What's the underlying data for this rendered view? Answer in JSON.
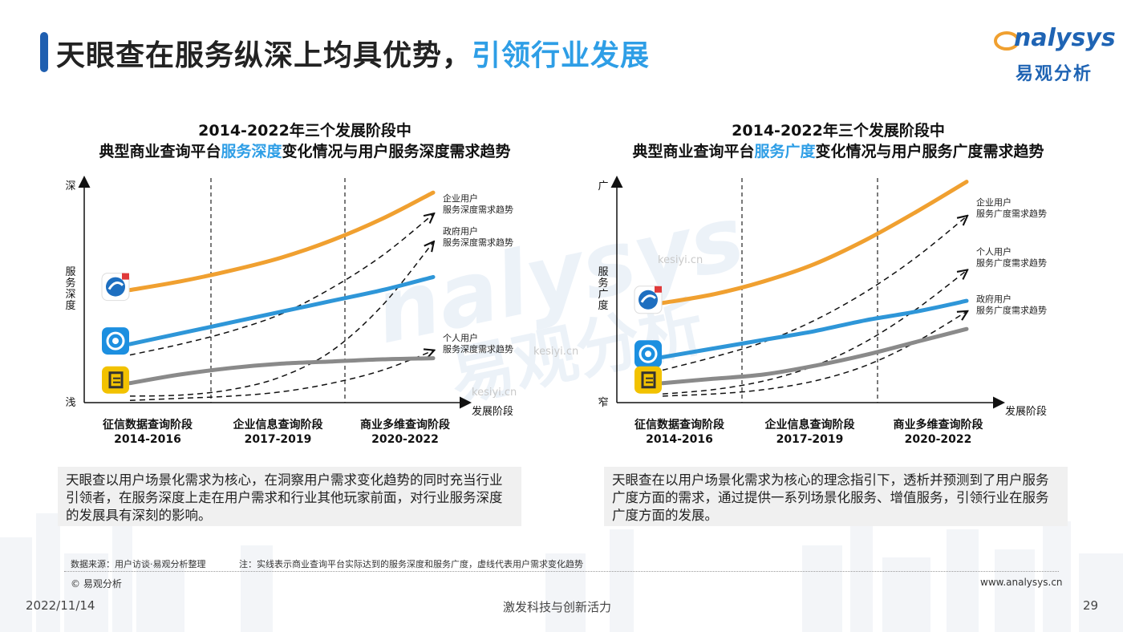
{
  "header": {
    "title_main": "天眼查在服务纵深上均具优势，",
    "title_highlight": "引领行业发展",
    "logo_en": "nalysys",
    "logo_cn": "易观分析"
  },
  "colors": {
    "accent": "#2e9ee6",
    "orange": "#f0a030",
    "blue": "#2e96d8",
    "gray": "#8a8a8a"
  },
  "chart_data": [
    {
      "type": "line",
      "title_line1": "2014-2022年三个发展阶段中",
      "title_line2_pre": "典型商业查询平台",
      "title_line2_hl": "服务深度",
      "title_line2_post": "变化情况与用户服务深度需求趋势",
      "ylabel": "服务深度",
      "y_top_label": "深",
      "y_bottom_label": "浅",
      "xlabel": "发展阶段",
      "categories": [
        {
          "name": "征信数据查询阶段",
          "years": "2014-2016"
        },
        {
          "name": "企业信息查询阶段",
          "years": "2017-2019"
        },
        {
          "name": "商业多维查询阶段",
          "years": "2020-2022"
        }
      ],
      "platform_series": [
        {
          "icon": "tianyancha",
          "color": "orange",
          "x": [
            0,
            0.5,
            1,
            1.5,
            2,
            2.5,
            3
          ],
          "y": [
            52,
            56,
            61,
            67,
            75,
            85,
            97
          ]
        },
        {
          "icon": "qichacha",
          "color": "blue",
          "x": [
            0,
            0.5,
            1,
            1.5,
            2,
            2.5,
            3
          ],
          "y": [
            27,
            32,
            37,
            42,
            47,
            52,
            58
          ]
        },
        {
          "icon": "qixinbao",
          "color": "gray",
          "x": [
            0,
            0.5,
            1,
            1.5,
            2,
            2.5,
            3
          ],
          "y": [
            9,
            13,
            16,
            18,
            19,
            20,
            20.5
          ]
        }
      ],
      "demand_series": [
        {
          "label1": "企业用户",
          "label2": "服务深度需求趋势",
          "x": [
            0,
            0.5,
            1,
            1.5,
            2,
            2.5,
            3
          ],
          "y": [
            22,
            27,
            33,
            41,
            53,
            68,
            87
          ]
        },
        {
          "label1": "政府用户",
          "label2": "服务深度需求趋势",
          "x": [
            0,
            0.5,
            1,
            1.5,
            2,
            2.5,
            3
          ],
          "y": [
            3,
            3.5,
            6,
            12,
            24,
            45,
            74
          ]
        },
        {
          "label1": "个人用户",
          "label2": "服务深度需求趋势",
          "x": [
            0,
            0.5,
            1,
            1.5,
            2,
            2.5,
            3
          ],
          "y": [
            1,
            2,
            3,
            5,
            9,
            15,
            24
          ]
        }
      ],
      "grid": false
    },
    {
      "type": "line",
      "title_line1": "2014-2022年三个发展阶段中",
      "title_line2_pre": "典型商业查询平台",
      "title_line2_hl": "服务广度",
      "title_line2_post": "变化情况与用户服务广度需求趋势",
      "ylabel": "服务广度",
      "y_top_label": "广",
      "y_bottom_label": "窄",
      "xlabel": "发展阶段",
      "categories": [
        {
          "name": "征信数据查询阶段",
          "years": "2014-2016"
        },
        {
          "name": "企业信息查询阶段",
          "years": "2017-2019"
        },
        {
          "name": "商业多维查询阶段",
          "years": "2020-2022"
        }
      ],
      "platform_series": [
        {
          "icon": "tianyancha",
          "color": "orange",
          "x": [
            0,
            0.5,
            1,
            1.5,
            2,
            2.5,
            3
          ],
          "y": [
            46,
            50,
            56,
            64,
            75,
            88,
            102
          ]
        },
        {
          "icon": "qichacha",
          "color": "blue",
          "x": [
            0,
            0.5,
            1,
            1.5,
            2,
            2.5,
            3
          ],
          "y": [
            21,
            25,
            29,
            33,
            38,
            42,
            47
          ]
        },
        {
          "icon": "qixinbao",
          "color": "gray",
          "x": [
            0,
            0.5,
            1,
            1.5,
            2,
            2.5,
            3
          ],
          "y": [
            9,
            11,
            13,
            17,
            22,
            28,
            34
          ]
        }
      ],
      "demand_series": [
        {
          "label1": "企业用户",
          "label2": "服务广度需求趋势",
          "x": [
            0,
            0.5,
            1,
            1.5,
            2,
            2.5,
            3
          ],
          "y": [
            15,
            21,
            28,
            38,
            51,
            67,
            86
          ]
        },
        {
          "label1": "个人用户",
          "label2": "服务广度需求趋势",
          "x": [
            0,
            0.5,
            1,
            1.5,
            2,
            2.5,
            3
          ],
          "y": [
            4,
            6,
            10,
            17,
            28,
            43,
            61
          ]
        },
        {
          "label1": "政府用户",
          "label2": "服务广度需求趋势",
          "x": [
            0,
            0.5,
            1,
            1.5,
            2,
            2.5,
            3
          ],
          "y": [
            3,
            4,
            6,
            10,
            17,
            28,
            42
          ]
        }
      ],
      "grid": false
    }
  ],
  "left_desc": "天眼查以用户场景化需求为核心，在洞察用户需求变化趋势的同时充当行业引领者，在服务深度上走在用户需求和行业其他玩家前面，对行业服务深度的发展具有深刻的影响。",
  "right_desc": "天眼查在以用户场景化需求为核心的理念指引下，透析并预测到了用户服务广度方面的需求，通过提供一系列场景化服务、增值服务，引领行业在服务广度方面的发展。",
  "footer": {
    "source": "数据来源：用户访谈·易观分析整理",
    "note": "注：实线表示商业查询平台实际达到的服务深度和服务广度，虚线代表用户需求变化趋势",
    "copyright": "© 易观分析",
    "website": "www.analysys.cn",
    "date": "2022/11/14",
    "slogan": "激发科技与创新活力",
    "page": "29"
  },
  "watermark": {
    "site": "kesiyi.cn"
  }
}
